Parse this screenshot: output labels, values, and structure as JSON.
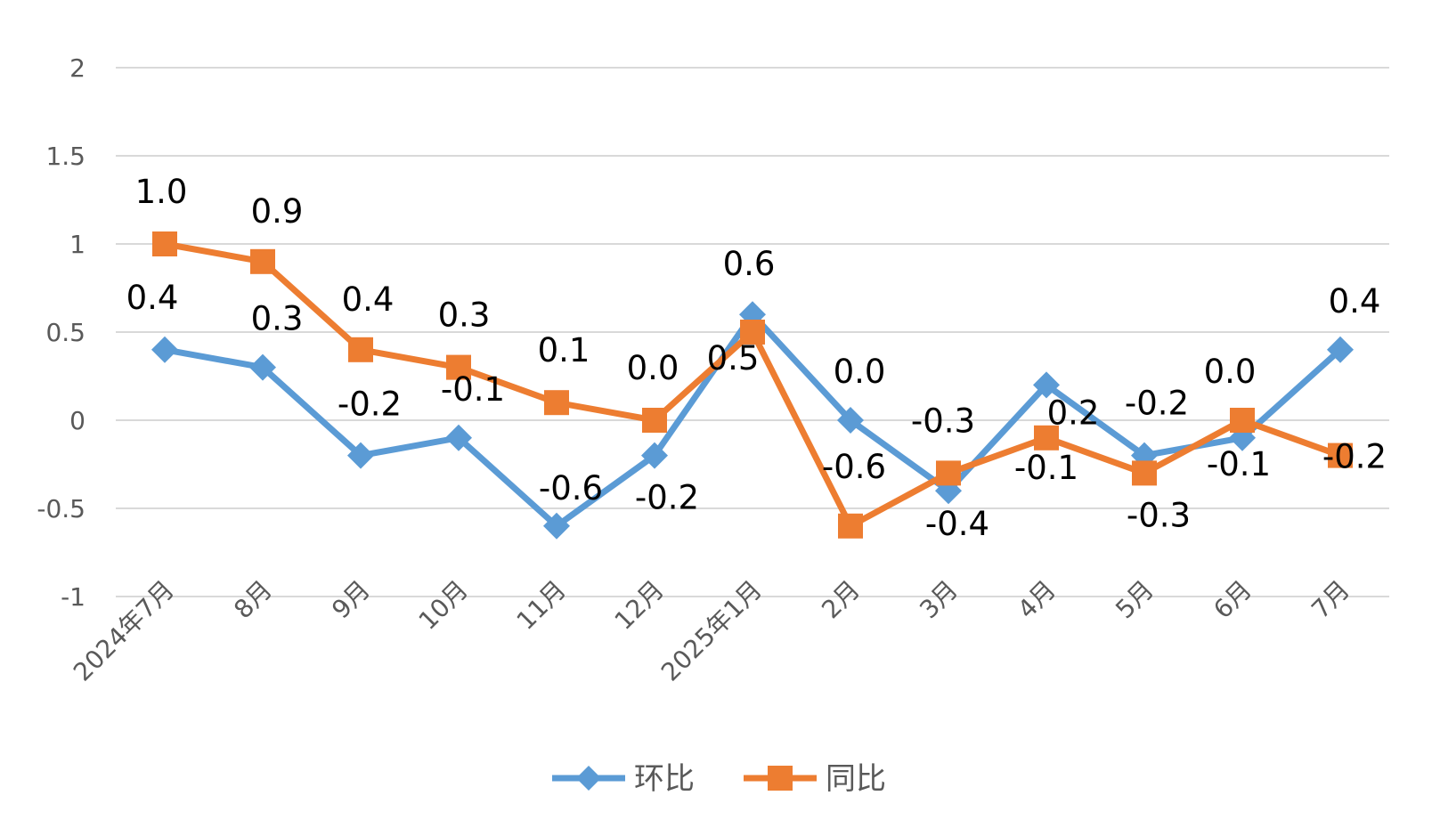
{
  "chart_data": {
    "type": "line",
    "categories": [
      "2024年7月",
      "8月",
      "9月",
      "10月",
      "11月",
      "12月",
      "2025年1月",
      "2月",
      "3月",
      "4月",
      "5月",
      "6月",
      "7月"
    ],
    "series": [
      {
        "name": "环比",
        "color": "#5B9BD5",
        "marker": "diamond",
        "values": [
          0.4,
          0.3,
          -0.2,
          -0.1,
          -0.6,
          -0.2,
          0.6,
          0.0,
          -0.4,
          0.2,
          -0.2,
          -0.1,
          0.4
        ],
        "labels": [
          "0.4",
          "0.3",
          "-0.2",
          "-0.1",
          "-0.6",
          "-0.2",
          "0.6",
          "0.0",
          "-0.4",
          "0.2",
          "-0.2",
          "-0.1",
          "0.4"
        ]
      },
      {
        "name": "同比",
        "color": "#ED7D31",
        "marker": "square",
        "values": [
          1.0,
          0.9,
          0.4,
          0.3,
          0.1,
          0.0,
          0.5,
          -0.6,
          -0.3,
          -0.1,
          -0.3,
          0.0,
          -0.2
        ],
        "labels": [
          "1.0",
          "0.9",
          "0.4",
          "0.3",
          "0.1",
          "0.0",
          "0.5",
          "-0.6",
          "-0.3",
          "-0.1",
          "-0.3",
          "0.0",
          "-0.2"
        ]
      }
    ],
    "yticks": [
      "2",
      "1.5",
      "1",
      "0.5",
      "0",
      "-0.5",
      "-1"
    ],
    "ylim": [
      -1,
      2
    ],
    "grid": true,
    "legend_position": "bottom-center",
    "gridline_color": "#D9D9D9"
  }
}
